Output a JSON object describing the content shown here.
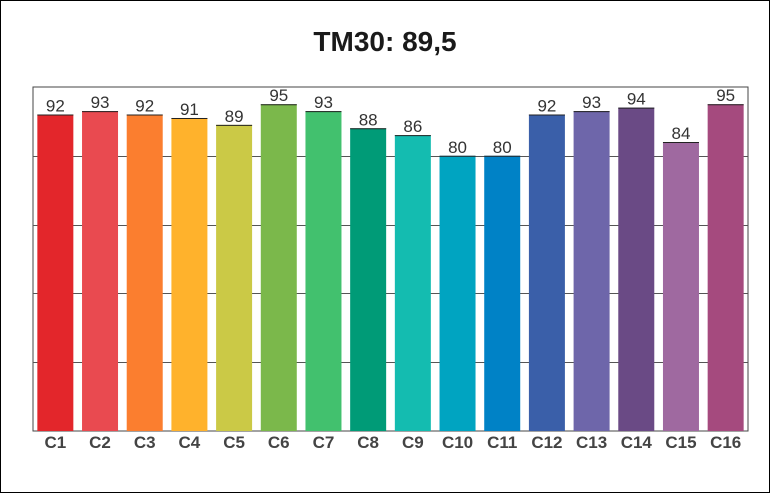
{
  "chart_data": {
    "type": "bar",
    "title": "TM30: 89,5",
    "xlabel": "",
    "ylabel": "",
    "ylim": [
      0,
      100
    ],
    "grid": true,
    "legend": "none",
    "categories": [
      "C1",
      "C2",
      "C3",
      "C4",
      "C5",
      "C6",
      "C7",
      "C8",
      "C9",
      "C10",
      "C11",
      "C12",
      "C13",
      "C14",
      "C15",
      "C16"
    ],
    "values": [
      92,
      93,
      92,
      91,
      89,
      95,
      93,
      88,
      86,
      80,
      80,
      92,
      93,
      94,
      84,
      95
    ],
    "colors": [
      "#e3262b",
      "#e94a50",
      "#fb7e2f",
      "#ffb22c",
      "#cbc946",
      "#7bb84b",
      "#42c16e",
      "#009b77",
      "#14bcb0",
      "#00a4c1",
      "#0082c6",
      "#3a5fa9",
      "#6e66aa",
      "#6a4a85",
      "#9f69a0",
      "#a54a7e"
    ]
  }
}
